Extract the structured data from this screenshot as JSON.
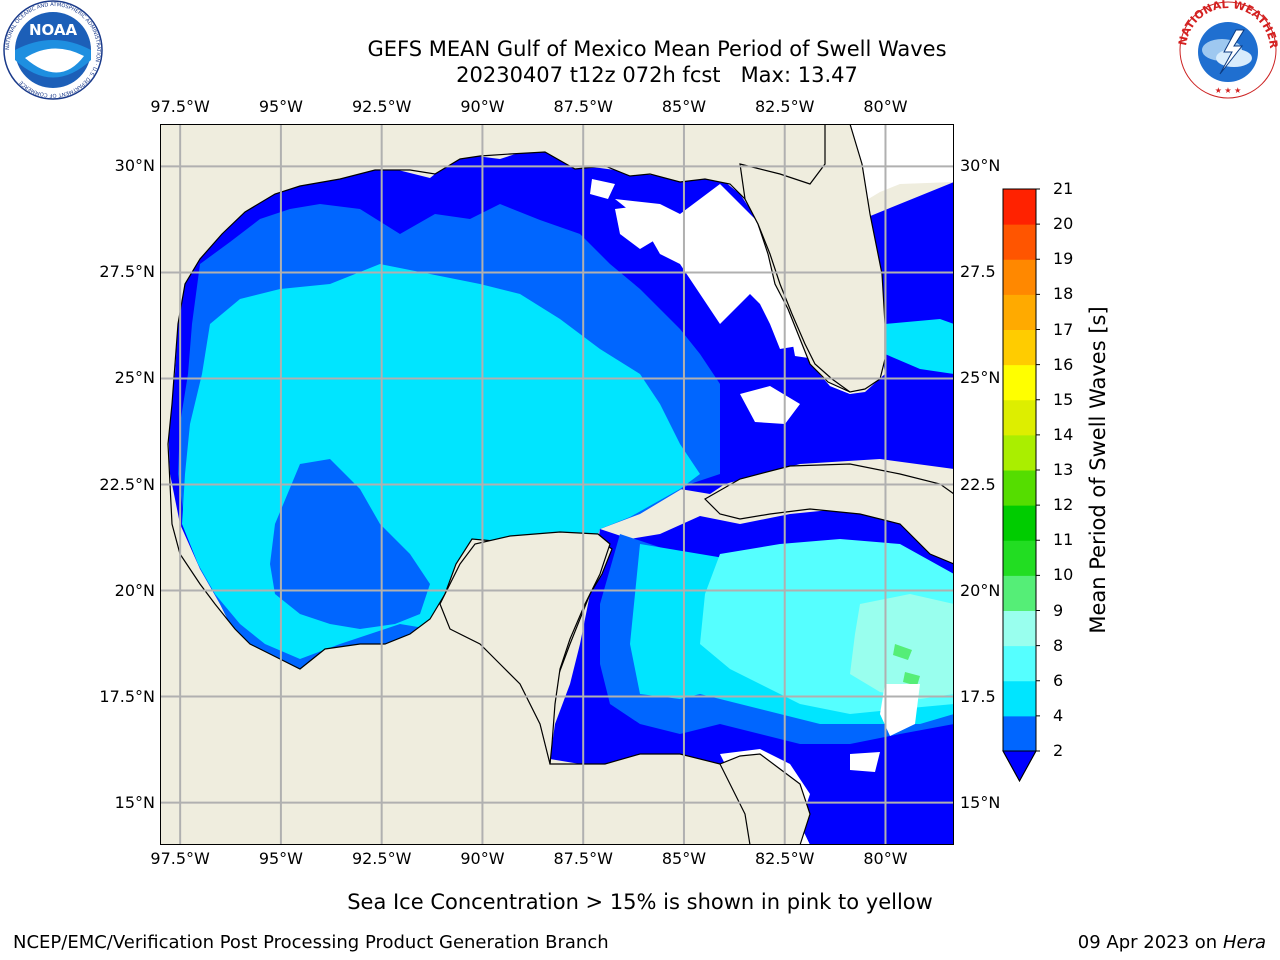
{
  "header": {
    "title_line1": "GEFS MEAN Gulf of Mexico Mean Period of Swell Waves",
    "title_line2": "20230407 t12z 072h fcst   Max: 13.47"
  },
  "logos": {
    "noaa": {
      "text": "NOAA",
      "ring_text": "NATIONAL OCEANIC AND ATMOSPHERIC ADMINISTRATION · U.S. DEPARTMENT OF COMMERCE"
    },
    "nws": {
      "ring_text": "NATIONAL WEATHER SERVICE"
    }
  },
  "map": {
    "lon_labels": [
      "97.5°W",
      "95°W",
      "92.5°W",
      "90°W",
      "87.5°W",
      "85°W",
      "82.5°W",
      "80°W"
    ],
    "lat_labels": [
      "30°N",
      "27.5°N",
      "25°N",
      "22.5°N",
      "20°N",
      "17.5°N",
      "15°N"
    ],
    "lat_labels_right": [
      "30°N",
      "27.5",
      "25°N",
      "22.5",
      "20°N",
      "17.5",
      "15°N"
    ],
    "lon_values": [
      -97.5,
      -95,
      -92.5,
      -90,
      -87.5,
      -85,
      -82.5,
      -80
    ],
    "lat_values": [
      30,
      27.5,
      25,
      22.5,
      20,
      17.5,
      15
    ],
    "extent": {
      "lon_min": -98,
      "lon_max": -78.3,
      "lat_min": 14,
      "lat_max": 31
    },
    "land_color": "#efedde",
    "ocean_missing_color": "#ffffff",
    "grid_color": "#b0b0b0"
  },
  "colorbar": {
    "label": "Mean Period of Swell Waves [s]",
    "ticks": [
      "2",
      "4",
      "6",
      "8",
      "9",
      "10",
      "11",
      "12",
      "13",
      "14",
      "15",
      "16",
      "17",
      "18",
      "19",
      "20",
      "21"
    ],
    "bounds": [
      2,
      4,
      6,
      8,
      9,
      10,
      11,
      12,
      13,
      14,
      15,
      16,
      17,
      18,
      19,
      20,
      21
    ],
    "colors": [
      "#0066ff",
      "#00e5ff",
      "#55ffff",
      "#99ffee",
      "#55ee77",
      "#22dd22",
      "#00cc00",
      "#55dd00",
      "#aaee00",
      "#ddee00",
      "#ffff00",
      "#ffcc00",
      "#ffaa00",
      "#ff8800",
      "#ff5500",
      "#ff2200"
    ],
    "under_color": "#0000ff"
  },
  "footer": {
    "note": "Sea Ice Concentration > 15% is shown in pink to yellow",
    "credit": "NCEP/EMC/Verification Post Processing Product Generation Branch",
    "date": "09 Apr 2023 on ",
    "machine": "Hera"
  }
}
